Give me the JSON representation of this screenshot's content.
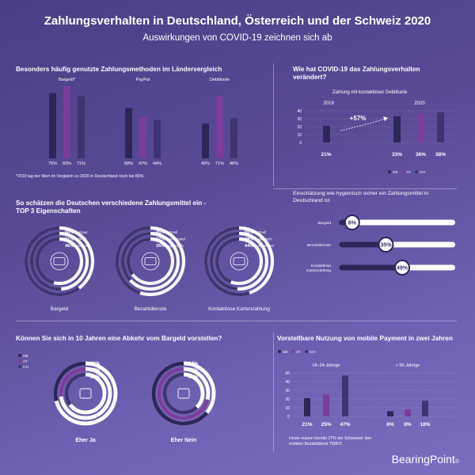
{
  "title": "Zahlungsverhalten in Deutschland, Österreich und der Schweiz  2020",
  "subtitle": "Auswirkungen von COVID-19 zeichnen sich ab",
  "colors": {
    "DE": "#2d2658",
    "AT": "#7a3d9c",
    "CH": "#3f3471",
    "ring_bg": "#ffffff"
  },
  "legend": {
    "de": "DE",
    "at": "AT",
    "ch": "CH"
  },
  "section1": {
    "title": "Besonders häufig genutzte Zahlungsmethoden im Ländervergleich",
    "footnote": "*2019 lag der Wert im Vergleich zu 2020 in Deutschland noch bei 80%."
  },
  "section2": {
    "title_line1": "Wie hat COVID-19 das Zahlungsverhalten",
    "title_line2": "verändert?",
    "subtitle": "Zahlung mit kontaktloser Debitkarte",
    "year1": "2019",
    "year2": "2020",
    "change": "+57%"
  },
  "section3": {
    "title_line1": "So schätzen die Deutschen verschiedene Zahlungsmittel ein -",
    "title_line2": "TOP 3 Eigenschaften",
    "groups": [
      {
        "label": "Bargeld",
        "icon": "coins-icon",
        "items": [
          {
            "value": "60%",
            "text": "vertraut"
          },
          {
            "value": "51%",
            "text": "schnell"
          },
          {
            "value": "46%",
            "text": "anonym"
          }
        ]
      },
      {
        "label": "Bezahldienste",
        "icon": "euro-device-icon",
        "items": [
          {
            "value": "45%",
            "text": "schnell"
          },
          {
            "value": "37%",
            "text": "komfortabel"
          },
          {
            "value": "35%",
            "text": "hygienisch"
          }
        ]
      },
      {
        "label": "Kontaktlose Kartenzahlung",
        "icon": "card-icon",
        "items": [
          {
            "value": "55%",
            "text": "schnell"
          },
          {
            "value": "49%",
            "text": "hygienisch"
          },
          {
            "value": "44%",
            "text": "komfortabel"
          }
        ]
      }
    ]
  },
  "section4": {
    "title_line1": "Einschätzung wie hygienisch sicher ein Zahlungsmittel in",
    "title_line2": "Deutschland ist",
    "bars": [
      {
        "label_lines": [
          "Bargeld"
        ],
        "value": 6,
        "value_label": "6%"
      },
      {
        "label_lines": [
          "Bezahldienste"
        ],
        "value": 35,
        "value_label": "35%"
      },
      {
        "label_lines": [
          "Kontaktlose",
          "Kartenzahlung"
        ],
        "value": 49,
        "value_label": "49%"
      }
    ]
  },
  "section5": {
    "title": "Können Sie sich in 10 Jahren eine Abkehr vom Bargeld vorstellen?",
    "groups": [
      {
        "label": "Eher Ja",
        "icon": "thumbs-up-icon",
        "values": [
          "29%",
          "27%",
          "35%"
        ]
      },
      {
        "label": "Eher Nein",
        "icon": "thumbs-down-icon",
        "values": [
          "64%",
          "71%",
          "62%"
        ]
      }
    ]
  },
  "section6": {
    "title": "Vorstellbare Nutzung von mobile Payment in zwei Jahren",
    "footnote_line1": "Heute nutzen bereits 27% der Schweizer den",
    "footnote_line2": "mobilen Bezahldienst TWINT."
  },
  "brand": "BearingPoint",
  "chart_data": [
    {
      "type": "bar",
      "categories": [
        "Bargeld*",
        "PayPal",
        "Debitkarte"
      ],
      "series": [
        {
          "name": "DE",
          "values": [
            75,
            58,
            40
          ]
        },
        {
          "name": "AT",
          "values": [
            83,
            47,
            71
          ]
        },
        {
          "name": "CH",
          "values": [
            71,
            44,
            46
          ]
        }
      ],
      "value_labels": [
        [
          "75%",
          "83%",
          "71%"
        ],
        [
          "58%",
          "47%",
          "44%"
        ],
        [
          "40%",
          "71%",
          "46%"
        ]
      ]
    },
    {
      "type": "bar",
      "title": "Zahlung mit kontaktloser Debitkarte",
      "groups": [
        {
          "label": "2019",
          "bars": [
            {
              "series": "DE",
              "value": 21
            }
          ]
        },
        {
          "label": "2020",
          "bars": [
            {
              "series": "DE",
              "value": 33
            },
            {
              "series": "AT",
              "value": 36
            },
            {
              "series": "CH",
              "value": 38
            }
          ]
        }
      ],
      "yticks": [
        0,
        10,
        20,
        30,
        40
      ],
      "ylim": [
        0,
        40
      ],
      "annotation": "+57%"
    },
    {
      "type": "bar",
      "groups": [
        {
          "label": "18–24-Jährige",
          "values": [
            21,
            25,
            47
          ]
        },
        {
          "label": "> 55-Jährige",
          "values": [
            6,
            8,
            18
          ]
        }
      ],
      "series_names": [
        "DE",
        "AT",
        "CH"
      ],
      "yticks": [
        0,
        10,
        20,
        30,
        40,
        50
      ],
      "ylim": [
        0,
        50
      ]
    }
  ]
}
